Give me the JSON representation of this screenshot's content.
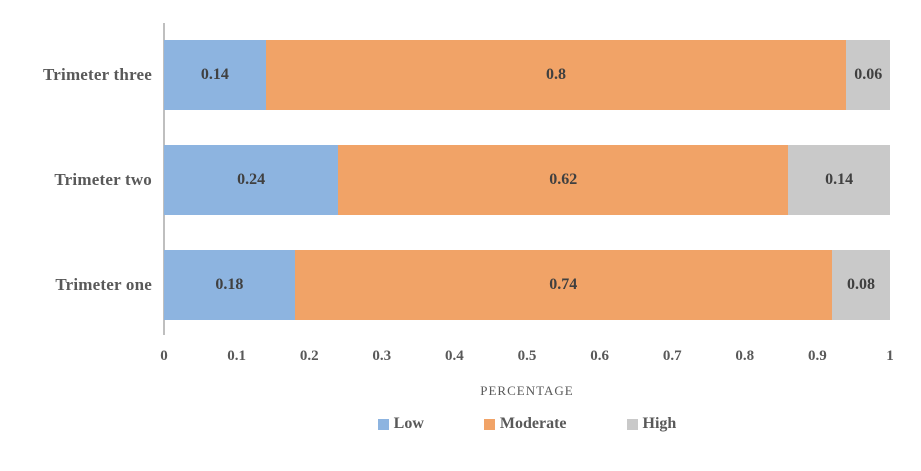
{
  "chart_data": {
    "type": "bar",
    "orientation": "horizontal-stacked",
    "categories": [
      "Trimeter three",
      "Trimeter two",
      "Trimeter one"
    ],
    "series": [
      {
        "name": "Low",
        "color": "#8DB4E0",
        "values": [
          0.14,
          0.24,
          0.18
        ]
      },
      {
        "name": "Moderate",
        "color": "#F1A367",
        "values": [
          0.8,
          0.62,
          0.74
        ]
      },
      {
        "name": "High",
        "color": "#C9C9C9",
        "values": [
          0.06,
          0.14,
          0.08
        ]
      }
    ],
    "xlabel": "PERCENTAGE",
    "ylabel": "",
    "title": "",
    "xlim": [
      0,
      1
    ],
    "xticks": [
      "0",
      "0.1",
      "0.2",
      "0.3",
      "0.4",
      "0.5",
      "0.6",
      "0.7",
      "0.8",
      "0.9",
      "1"
    ],
    "grid": false,
    "legend": {
      "position": "bottom",
      "entries": [
        "Low",
        "Moderate",
        "High"
      ]
    },
    "colors": {
      "axis_line": "#BFBFBF",
      "tick_text": "#595959",
      "category_text": "#595959",
      "data_label_text": "#404040"
    }
  }
}
